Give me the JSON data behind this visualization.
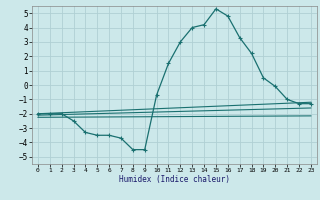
{
  "title": "",
  "xlabel": "Humidex (Indice chaleur)",
  "xlim": [
    -0.5,
    23.5
  ],
  "ylim": [
    -5.5,
    5.5
  ],
  "yticks": [
    -5,
    -4,
    -3,
    -2,
    -1,
    0,
    1,
    2,
    3,
    4,
    5
  ],
  "xticks": [
    0,
    1,
    2,
    3,
    4,
    5,
    6,
    7,
    8,
    9,
    10,
    11,
    12,
    13,
    14,
    15,
    16,
    17,
    18,
    19,
    20,
    21,
    22,
    23
  ],
  "bg_color": "#cce8ea",
  "grid_color": "#b0d0d4",
  "line_color": "#1a7070",
  "curve1_x": [
    0,
    1,
    2,
    3,
    4,
    5,
    6,
    7,
    8,
    9,
    10,
    11,
    12,
    13,
    14,
    15,
    16,
    17,
    18,
    19,
    20,
    21,
    22,
    23
  ],
  "curve1_y": [
    -2.0,
    -2.0,
    -2.0,
    -2.5,
    -3.3,
    -3.5,
    -3.5,
    -3.7,
    -4.5,
    -4.5,
    -0.7,
    1.5,
    3.0,
    4.0,
    4.2,
    5.3,
    4.8,
    3.3,
    2.2,
    0.5,
    -0.1,
    -1.0,
    -1.3,
    -1.3
  ],
  "line1_x": [
    0,
    23
  ],
  "line1_y": [
    -2.0,
    -1.2
  ],
  "line2_x": [
    0,
    23
  ],
  "line2_y": [
    -2.1,
    -1.6
  ],
  "line3_x": [
    0,
    23
  ],
  "line3_y": [
    -2.25,
    -2.15
  ]
}
